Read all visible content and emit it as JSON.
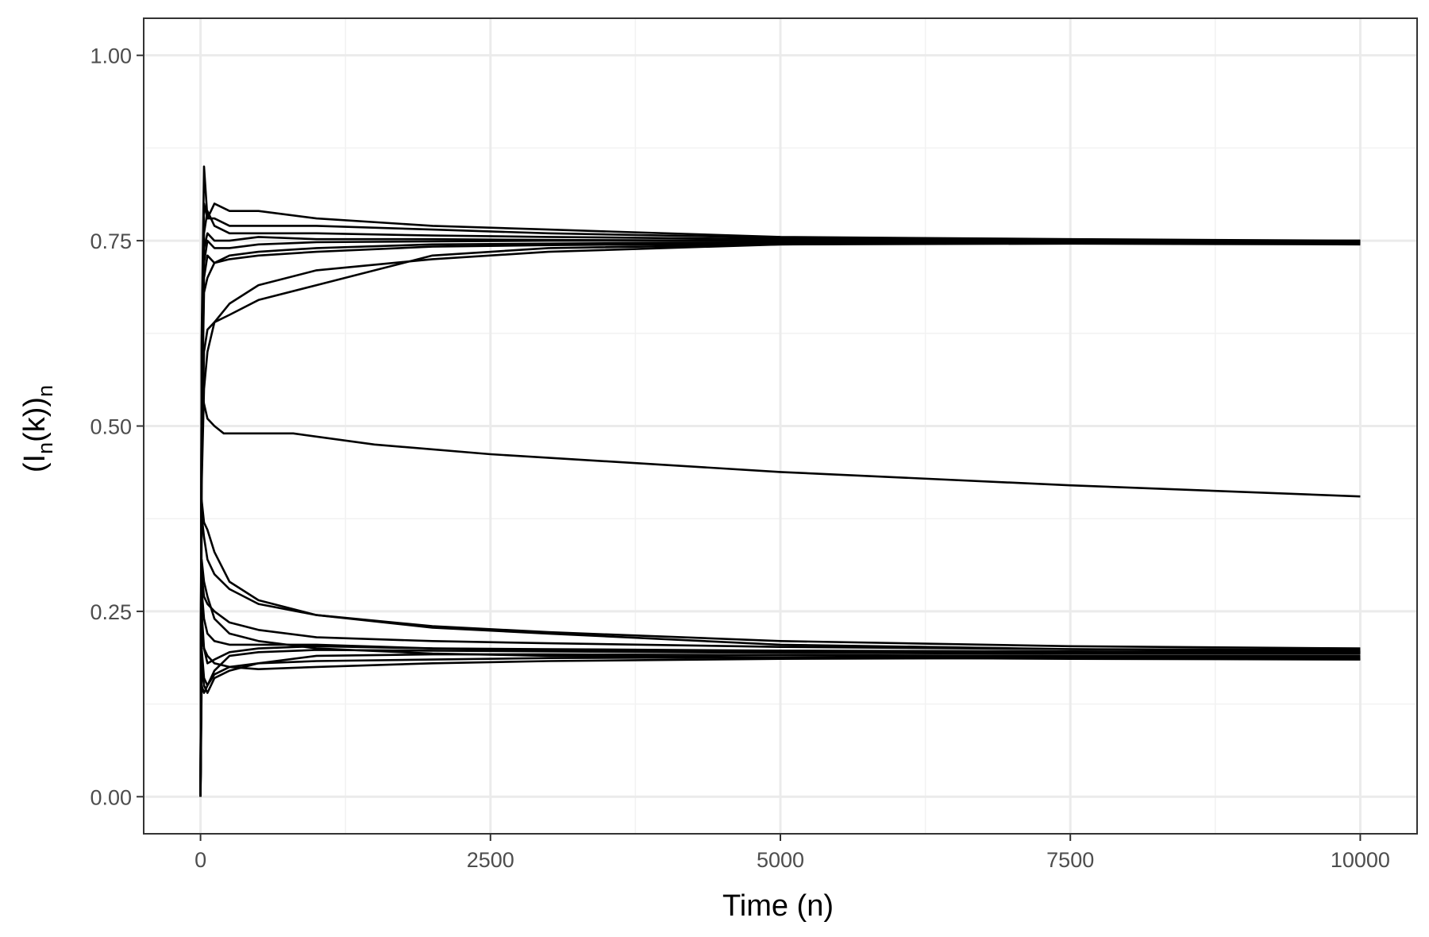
{
  "chart_data": {
    "type": "line",
    "title": "",
    "xlabel": "Time (n)",
    "ylabel": {
      "base": "(I",
      "sub1": "n",
      "mid": "(k))",
      "sub2": "n"
    },
    "xlim": [
      -490,
      10490
    ],
    "ylim": [
      -0.05,
      1.05
    ],
    "x_ticks": [
      0,
      2500,
      5000,
      7500,
      10000
    ],
    "x_tick_labels": [
      "0",
      "2500",
      "5000",
      "7500",
      "10000"
    ],
    "y_ticks": [
      0,
      0.25,
      0.5,
      0.75,
      1.0
    ],
    "y_tick_labels": [
      "0.00",
      "0.25",
      "0.50",
      "0.75",
      "1.00"
    ],
    "grid": true,
    "legend": "none",
    "theme": "bw",
    "line_color": "#000000",
    "series": [
      {
        "x": [
          0,
          10,
          30,
          60,
          120,
          250,
          500,
          1000,
          2000,
          3000,
          5000,
          7500,
          10000
        ],
        "y": [
          0,
          0.62,
          0.85,
          0.78,
          0.8,
          0.79,
          0.79,
          0.78,
          0.77,
          0.765,
          0.755,
          0.752,
          0.75
        ]
      },
      {
        "x": [
          0,
          10,
          30,
          60,
          120,
          250,
          500,
          1000,
          2000,
          3000,
          5000,
          7500,
          10000
        ],
        "y": [
          0,
          0.6,
          0.8,
          0.78,
          0.78,
          0.77,
          0.77,
          0.77,
          0.765,
          0.76,
          0.754,
          0.751,
          0.749
        ]
      },
      {
        "x": [
          0,
          10,
          30,
          60,
          120,
          250,
          500,
          1000,
          2000,
          3000,
          5000,
          7500,
          10000
        ],
        "y": [
          0,
          0.58,
          0.76,
          0.79,
          0.77,
          0.76,
          0.76,
          0.76,
          0.757,
          0.755,
          0.752,
          0.75,
          0.749
        ]
      },
      {
        "x": [
          0,
          10,
          30,
          60,
          120,
          250,
          500,
          1000,
          2000,
          3000,
          5000,
          7500,
          10000
        ],
        "y": [
          0,
          0.55,
          0.74,
          0.76,
          0.75,
          0.75,
          0.755,
          0.752,
          0.752,
          0.751,
          0.75,
          0.749,
          0.748
        ]
      },
      {
        "x": [
          0,
          10,
          30,
          60,
          120,
          250,
          500,
          1000,
          2000,
          3000,
          5000,
          7500,
          10000
        ],
        "y": [
          0,
          0.55,
          0.72,
          0.75,
          0.74,
          0.74,
          0.745,
          0.748,
          0.749,
          0.75,
          0.75,
          0.75,
          0.749
        ]
      },
      {
        "x": [
          0,
          10,
          30,
          60,
          120,
          250,
          500,
          1000,
          2000,
          3000,
          5000,
          7500,
          10000
        ],
        "y": [
          0,
          0.5,
          0.7,
          0.73,
          0.72,
          0.73,
          0.735,
          0.74,
          0.745,
          0.746,
          0.748,
          0.748,
          0.748
        ]
      },
      {
        "x": [
          0,
          10,
          30,
          60,
          120,
          250,
          500,
          1000,
          2000,
          3000,
          5000,
          7500,
          10000
        ],
        "y": [
          0,
          0.5,
          0.68,
          0.7,
          0.72,
          0.725,
          0.73,
          0.735,
          0.742,
          0.744,
          0.746,
          0.747,
          0.747
        ]
      },
      {
        "x": [
          0,
          10,
          30,
          60,
          120,
          250,
          500,
          1000,
          2000,
          3000,
          5000,
          7500,
          10000
        ],
        "y": [
          0,
          0.45,
          0.6,
          0.63,
          0.64,
          0.65,
          0.67,
          0.69,
          0.73,
          0.74,
          0.745,
          0.746,
          0.745
        ]
      },
      {
        "x": [
          0,
          10,
          30,
          60,
          120,
          250,
          500,
          1000,
          2000,
          3000,
          5000,
          7500,
          10000
        ],
        "y": [
          0,
          0.42,
          0.55,
          0.6,
          0.64,
          0.665,
          0.69,
          0.71,
          0.725,
          0.735,
          0.745,
          0.748,
          0.75
        ]
      },
      {
        "x": [
          0,
          10,
          30,
          60,
          120,
          200,
          400,
          800,
          1500,
          2500,
          5000,
          7500,
          10000
        ],
        "y": [
          0,
          0.55,
          0.53,
          0.51,
          0.5,
          0.49,
          0.49,
          0.49,
          0.475,
          0.462,
          0.438,
          0.42,
          0.405
        ]
      },
      {
        "x": [
          0,
          10,
          30,
          60,
          120,
          250,
          500,
          1000,
          2000,
          3000,
          5000,
          7500,
          10000
        ],
        "y": [
          0,
          0.4,
          0.37,
          0.36,
          0.33,
          0.29,
          0.265,
          0.245,
          0.23,
          0.222,
          0.21,
          0.203,
          0.2
        ]
      },
      {
        "x": [
          0,
          10,
          30,
          60,
          120,
          250,
          500,
          1000,
          2000,
          3000,
          5000,
          7500,
          10000
        ],
        "y": [
          0,
          0.38,
          0.35,
          0.32,
          0.3,
          0.28,
          0.26,
          0.245,
          0.228,
          0.22,
          0.205,
          0.199,
          0.196
        ]
      },
      {
        "x": [
          0,
          10,
          30,
          60,
          120,
          250,
          500,
          1000,
          2000,
          3000,
          5000,
          7500,
          10000
        ],
        "y": [
          0,
          0.3,
          0.27,
          0.26,
          0.25,
          0.235,
          0.225,
          0.215,
          0.21,
          0.207,
          0.202,
          0.199,
          0.198
        ]
      },
      {
        "x": [
          0,
          10,
          30,
          60,
          120,
          250,
          500,
          1000,
          2000,
          3000,
          5000,
          7500,
          10000
        ],
        "y": [
          0,
          0.28,
          0.24,
          0.22,
          0.21,
          0.205,
          0.205,
          0.205,
          0.2,
          0.199,
          0.197,
          0.196,
          0.195
        ]
      },
      {
        "x": [
          0,
          10,
          30,
          60,
          120,
          250,
          500,
          1000,
          2000,
          3000,
          5000,
          7500,
          10000
        ],
        "y": [
          0,
          0.25,
          0.2,
          0.18,
          0.185,
          0.195,
          0.2,
          0.203,
          0.2,
          0.198,
          0.196,
          0.195,
          0.194
        ]
      },
      {
        "x": [
          0,
          10,
          30,
          60,
          120,
          250,
          500,
          1000,
          2000,
          3000,
          5000,
          7500,
          10000
        ],
        "y": [
          0,
          0.2,
          0.16,
          0.15,
          0.17,
          0.19,
          0.195,
          0.198,
          0.197,
          0.196,
          0.194,
          0.193,
          0.193
        ]
      },
      {
        "x": [
          0,
          10,
          30,
          60,
          120,
          250,
          500,
          1000,
          2000,
          3000,
          5000,
          7500,
          10000
        ],
        "y": [
          0,
          0.18,
          0.15,
          0.14,
          0.16,
          0.17,
          0.18,
          0.19,
          0.192,
          0.192,
          0.191,
          0.19,
          0.19
        ]
      },
      {
        "x": [
          0,
          10,
          30,
          60,
          120,
          250,
          500,
          1000,
          2000,
          3000,
          5000,
          7500,
          10000
        ],
        "y": [
          0,
          0.15,
          0.14,
          0.15,
          0.165,
          0.175,
          0.18,
          0.183,
          0.185,
          0.187,
          0.188,
          0.188,
          0.188
        ]
      },
      {
        "x": [
          0,
          10,
          30,
          60,
          120,
          250,
          500,
          1000,
          2000,
          3000,
          5000,
          7500,
          10000
        ],
        "y": [
          0,
          0.22,
          0.2,
          0.19,
          0.18,
          0.175,
          0.172,
          0.175,
          0.18,
          0.183,
          0.186,
          0.187,
          0.186
        ]
      },
      {
        "x": [
          0,
          10,
          30,
          60,
          120,
          250,
          500,
          1000,
          2000,
          3000,
          5000,
          7500,
          10000
        ],
        "y": [
          0,
          0.32,
          0.29,
          0.27,
          0.24,
          0.22,
          0.21,
          0.2,
          0.193,
          0.19,
          0.188,
          0.186,
          0.185
        ]
      }
    ]
  }
}
